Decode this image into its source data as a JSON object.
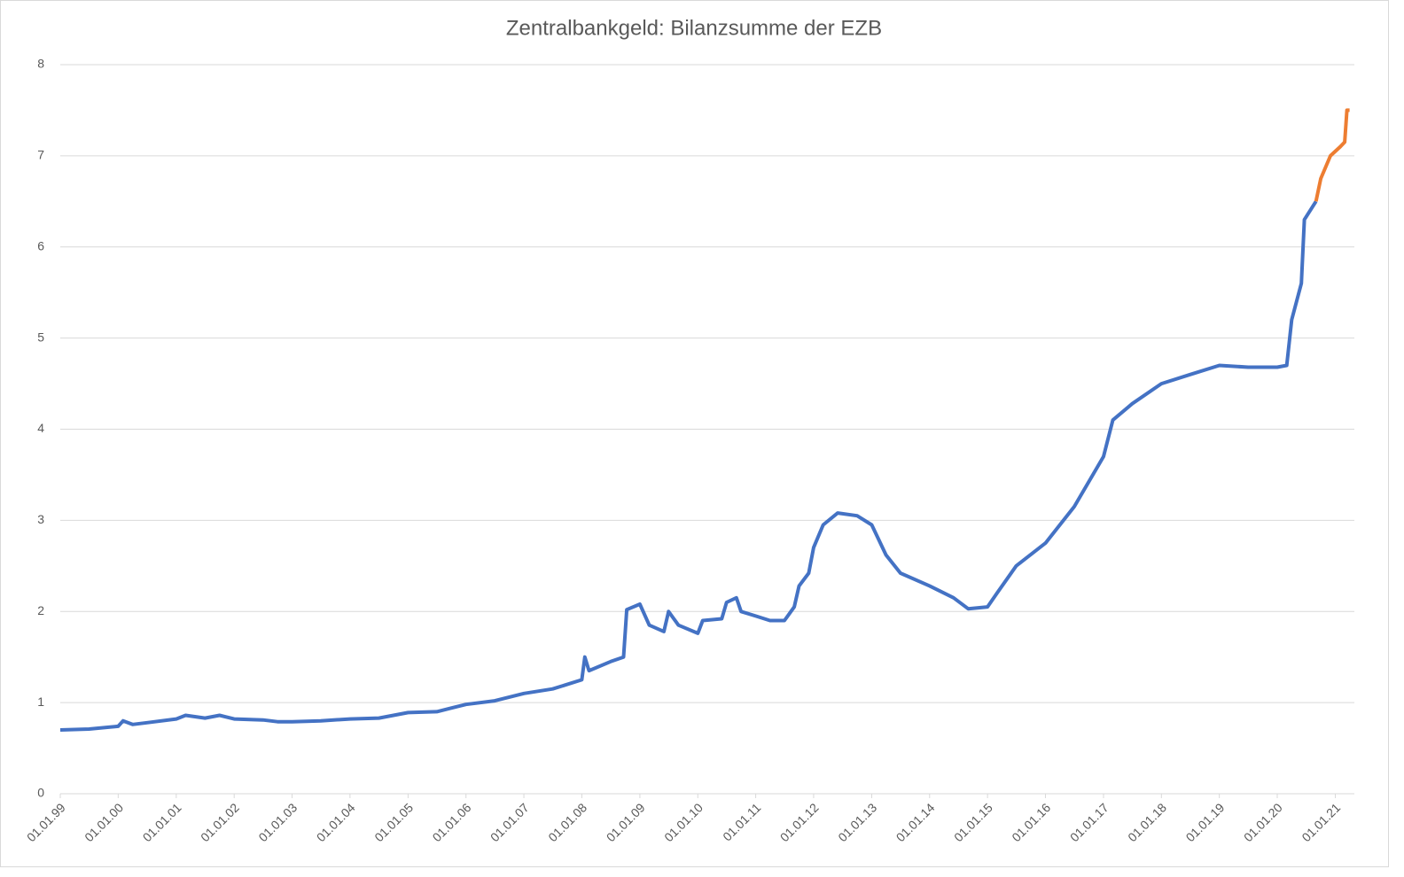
{
  "chart_data": {
    "type": "line",
    "title": "Zentralbankgeld: Bilanzsumme der EZB",
    "xlim": [
      "1999-01-01",
      "2021-05-01"
    ],
    "xticks": [
      {
        "value": "1999-01-01",
        "label": "01.01.99"
      },
      {
        "value": "2000-01-01",
        "label": "01.01.00"
      },
      {
        "value": "2001-01-01",
        "label": "01.01.01"
      },
      {
        "value": "2002-01-01",
        "label": "01.01.02"
      },
      {
        "value": "2003-01-01",
        "label": "01.01.03"
      },
      {
        "value": "2004-01-01",
        "label": "01.01.04"
      },
      {
        "value": "2005-01-01",
        "label": "01.01.05"
      },
      {
        "value": "2006-01-01",
        "label": "01.01.06"
      },
      {
        "value": "2007-01-01",
        "label": "01.01.07"
      },
      {
        "value": "2008-01-01",
        "label": "01.01.08"
      },
      {
        "value": "2009-01-01",
        "label": "01.01.09"
      },
      {
        "value": "2010-01-01",
        "label": "01.01.10"
      },
      {
        "value": "2011-01-01",
        "label": "01.01.11"
      },
      {
        "value": "2012-01-01",
        "label": "01.01.12"
      },
      {
        "value": "2013-01-01",
        "label": "01.01.13"
      },
      {
        "value": "2014-01-01",
        "label": "01.01.14"
      },
      {
        "value": "2015-01-01",
        "label": "01.01.15"
      },
      {
        "value": "2016-01-01",
        "label": "01.01.16"
      },
      {
        "value": "2017-01-01",
        "label": "01.01.17"
      },
      {
        "value": "2018-01-01",
        "label": "01.01.18"
      },
      {
        "value": "2019-01-01",
        "label": "01.01.19"
      },
      {
        "value": "2020-01-01",
        "label": "01.01.20"
      },
      {
        "value": "2021-01-01",
        "label": "01.01.21"
      }
    ],
    "ylim": [
      0,
      8
    ],
    "yticks": [
      0,
      1,
      2,
      3,
      4,
      5,
      6,
      7,
      8
    ],
    "grid": true,
    "series": [
      {
        "color": "#4472c4",
        "x": [
          "1999-01-01",
          "1999-07-01",
          "2000-01-01",
          "2000-02-01",
          "2000-04-01",
          "2000-07-01",
          "2001-01-01",
          "2001-03-01",
          "2001-07-01",
          "2001-10-01",
          "2002-01-01",
          "2002-07-01",
          "2002-10-01",
          "2003-01-01",
          "2003-07-01",
          "2004-01-01",
          "2004-07-01",
          "2005-01-01",
          "2005-07-01",
          "2006-01-01",
          "2006-07-01",
          "2007-01-01",
          "2007-07-01",
          "2008-01-01",
          "2008-01-20",
          "2008-02-15",
          "2008-07-01",
          "2008-09-20",
          "2008-10-10",
          "2009-01-01",
          "2009-03-01",
          "2009-06-01",
          "2009-07-01",
          "2009-09-01",
          "2010-01-01",
          "2010-02-01",
          "2010-06-01",
          "2010-07-01",
          "2010-09-01",
          "2010-10-01",
          "2011-01-01",
          "2011-04-01",
          "2011-07-01",
          "2011-09-01",
          "2011-10-01",
          "2011-12-01",
          "2012-01-01",
          "2012-03-01",
          "2012-06-01",
          "2012-10-01",
          "2013-01-01",
          "2013-04-01",
          "2013-07-01",
          "2014-01-01",
          "2014-06-01",
          "2014-09-01",
          "2015-01-01",
          "2015-03-01",
          "2015-07-01",
          "2016-01-01",
          "2016-07-01",
          "2017-01-01",
          "2017-03-01",
          "2017-07-01",
          "2018-01-01",
          "2018-07-01",
          "2019-01-01",
          "2019-07-01",
          "2020-01-01",
          "2020-03-01",
          "2020-04-01",
          "2020-06-01",
          "2020-06-20",
          "2020-09-01"
        ],
        "values": [
          0.7,
          0.71,
          0.74,
          0.8,
          0.76,
          0.78,
          0.82,
          0.86,
          0.83,
          0.86,
          0.82,
          0.81,
          0.79,
          0.79,
          0.8,
          0.82,
          0.83,
          0.89,
          0.9,
          0.98,
          1.02,
          1.1,
          1.15,
          1.25,
          1.5,
          1.35,
          1.45,
          1.5,
          2.02,
          2.08,
          1.85,
          1.78,
          2.0,
          1.85,
          1.76,
          1.9,
          1.92,
          2.1,
          2.15,
          2.0,
          1.95,
          1.9,
          1.9,
          2.05,
          2.28,
          2.42,
          2.7,
          2.95,
          3.08,
          3.05,
          2.95,
          2.62,
          2.42,
          2.28,
          2.15,
          2.03,
          2.05,
          2.2,
          2.5,
          2.75,
          3.15,
          3.7,
          4.1,
          4.28,
          4.5,
          4.6,
          4.7,
          4.68,
          4.68,
          4.7,
          5.2,
          5.6,
          6.3,
          6.5
        ]
      },
      {
        "color": "#ed7d31",
        "x": [
          "2020-09-01",
          "2020-10-01",
          "2020-12-01",
          "2021-02-01",
          "2021-03-01",
          "2021-03-15",
          "2021-04-01"
        ],
        "values": [
          6.5,
          6.75,
          7.0,
          7.1,
          7.15,
          7.5,
          7.5
        ]
      }
    ]
  }
}
